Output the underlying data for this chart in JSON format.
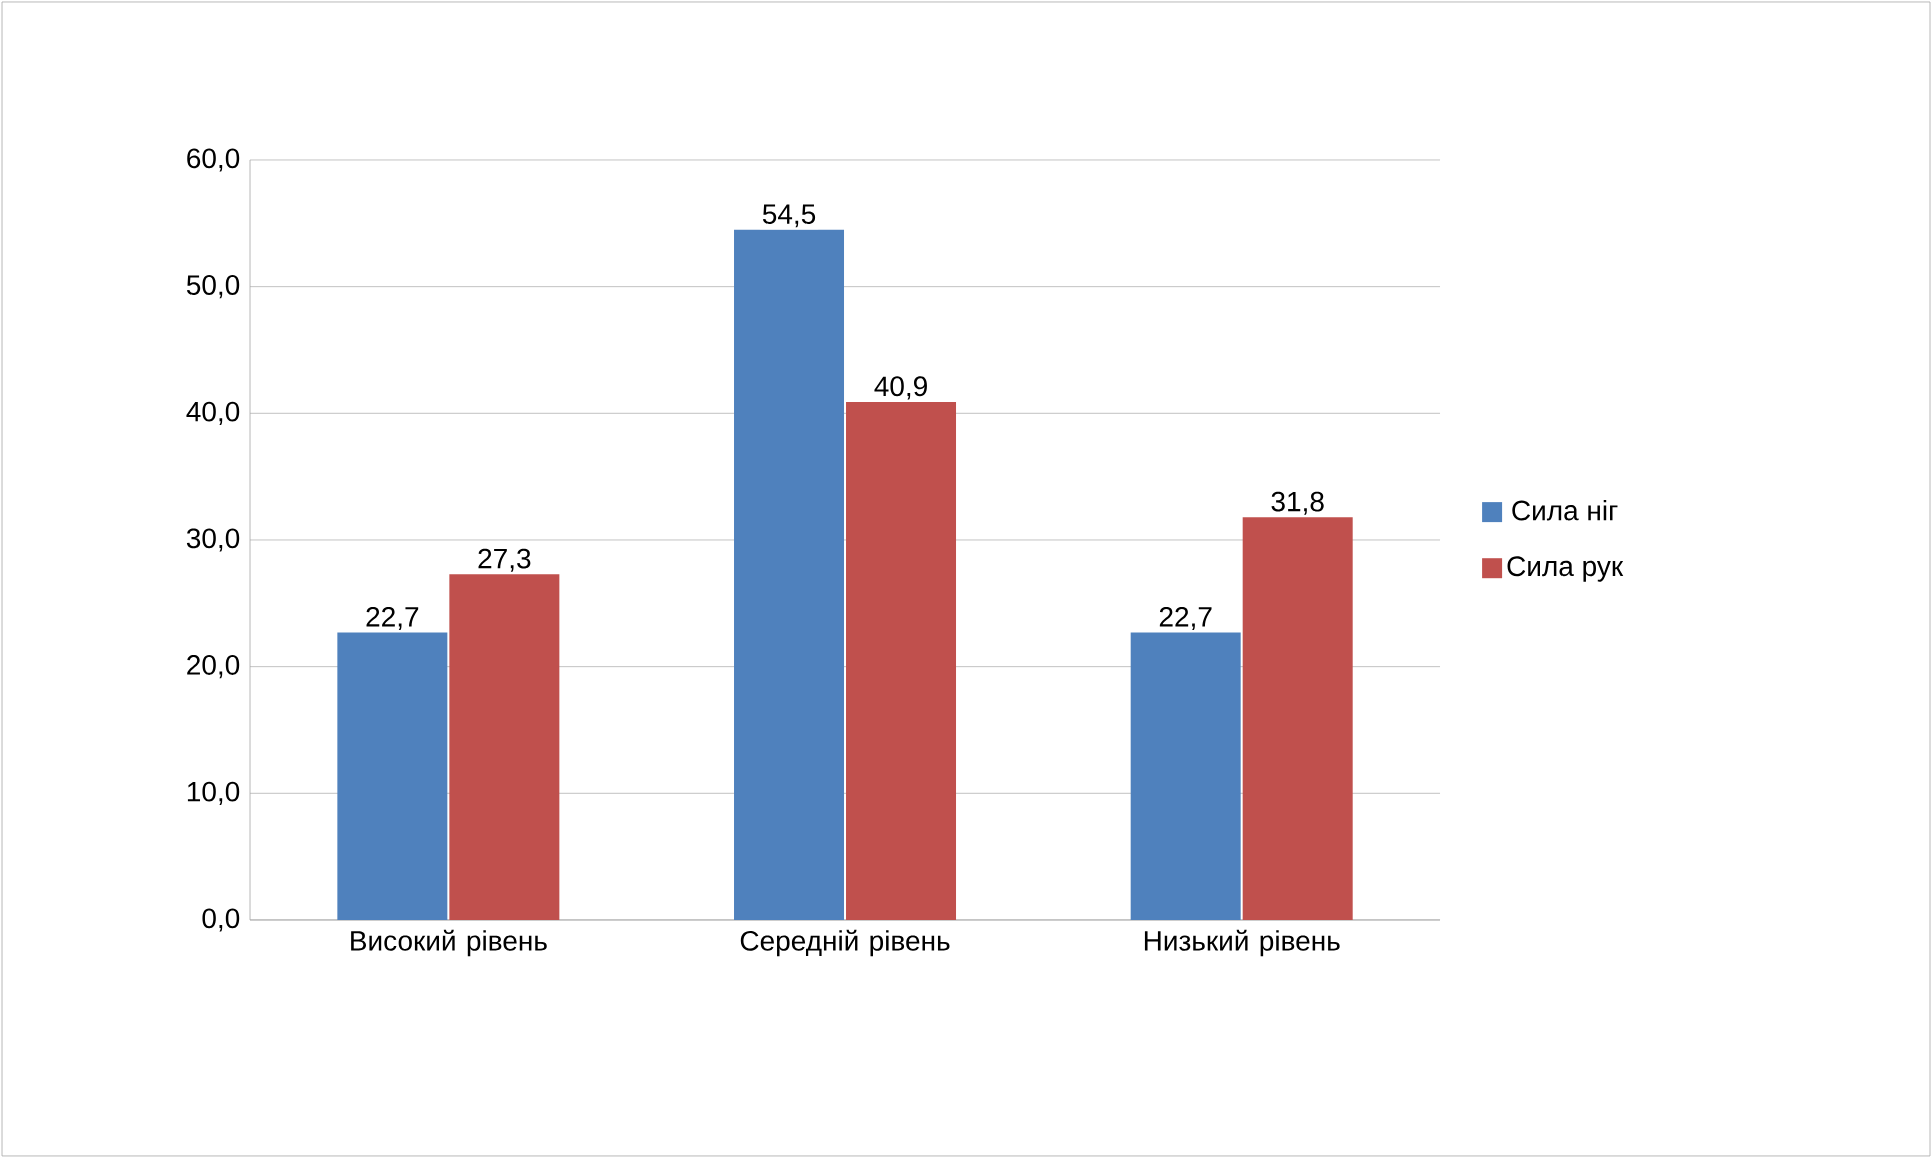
{
  "chart_data": {
    "type": "bar",
    "categories": [
      "Високий рівень",
      "Середній рівень",
      "Низький рівень"
    ],
    "series": [
      {
        "name": "Сила ніг",
        "color": "#4f81bd",
        "values": [
          22.7,
          54.5,
          22.7
        ],
        "value_labels": [
          "22,7",
          "54,5",
          "22,7"
        ]
      },
      {
        "name": "Сила рук",
        "color": "#c0504d",
        "values": [
          27.3,
          40.9,
          31.8
        ],
        "value_labels": [
          "27,3",
          "40,9",
          "31,8"
        ]
      }
    ],
    "ylim": [
      0,
      60
    ],
    "yticks": [
      {
        "value": 0,
        "label": "0,0"
      },
      {
        "value": 10,
        "label": "10,0"
      },
      {
        "value": 20,
        "label": "20,0"
      },
      {
        "value": 30,
        "label": "30,0"
      },
      {
        "value": 40,
        "label": "40,0"
      },
      {
        "value": 50,
        "label": "50,0"
      },
      {
        "value": 60,
        "label": "60,0"
      }
    ],
    "grid": "y",
    "legend": "right"
  }
}
